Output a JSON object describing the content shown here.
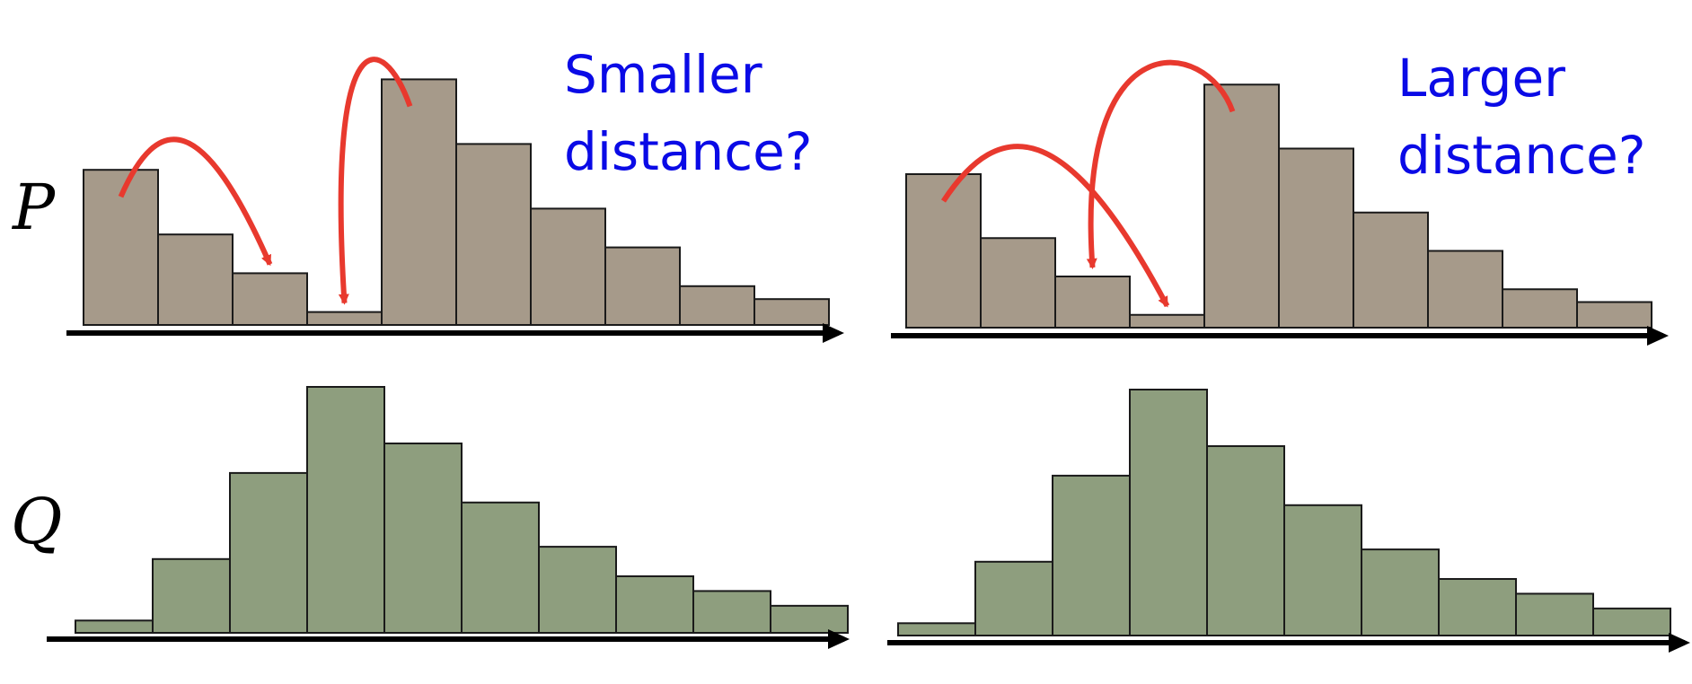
{
  "labels": {
    "p": "P",
    "q": "Q"
  },
  "captions": {
    "left_line1": "Smaller",
    "left_line2": "distance?",
    "right_line1": "Larger",
    "right_line2": "distance?"
  },
  "colors": {
    "p_bars": "#a69a8a",
    "q_bars": "#8e9e7e",
    "arrows": "#e8392e",
    "caption": "#0a0ae6"
  },
  "chart_data": [
    {
      "type": "bar",
      "panel": "left-top",
      "distribution": "P",
      "values": [
        6,
        3.5,
        2,
        0.5,
        9.5,
        7,
        4.5,
        3,
        1.5,
        1
      ],
      "moves": [
        {
          "from_bin": 0,
          "to_bin": 2
        },
        {
          "from_bin": 4,
          "to_bin": 3
        }
      ]
    },
    {
      "type": "bar",
      "panel": "left-bottom",
      "distribution": "Q",
      "values": [
        0.5,
        3,
        6.5,
        10,
        7.7,
        5.3,
        3.5,
        2.3,
        1.7,
        1.1
      ]
    },
    {
      "type": "bar",
      "panel": "right-top",
      "distribution": "P",
      "values": [
        6,
        3.5,
        2,
        0.5,
        9.5,
        7,
        4.5,
        3,
        1.5,
        1
      ],
      "moves": [
        {
          "from_bin": 0,
          "to_bin": 3
        },
        {
          "from_bin": 4,
          "to_bin": 2
        }
      ]
    },
    {
      "type": "bar",
      "panel": "right-bottom",
      "distribution": "Q",
      "values": [
        0.5,
        3,
        6.5,
        10,
        7.7,
        5.3,
        3.5,
        2.3,
        1.7,
        1.1
      ]
    }
  ]
}
